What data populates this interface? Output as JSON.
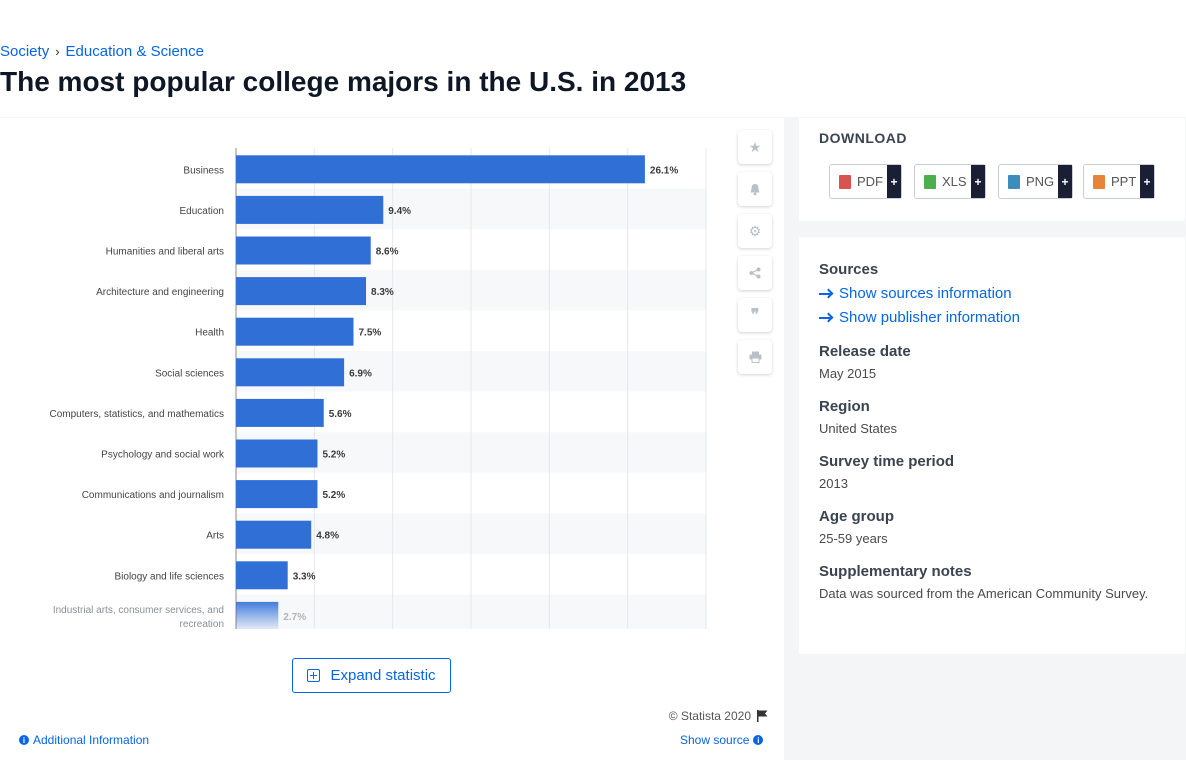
{
  "breadcrumb": {
    "level1": "Society",
    "separator": "›",
    "level2": "Education & Science"
  },
  "page_title": "The most popular college majors in the U.S. in 2013",
  "chart_tools": [
    "star-icon",
    "bell-icon",
    "gear-icon",
    "share-icon",
    "quote-icon",
    "print-icon"
  ],
  "expand_label": "Expand statistic",
  "copyright": "© Statista 2020",
  "additional_info": "Additional Information",
  "show_source": "Show source",
  "download": {
    "title": "DOWNLOAD",
    "formats": [
      {
        "label": "PDF",
        "color": "#d9534f"
      },
      {
        "label": "XLS",
        "color": "#4cae4c"
      },
      {
        "label": "PNG",
        "color": "#3c8dbc"
      },
      {
        "label": "PPT",
        "color": "#e8833a"
      }
    ],
    "plus": "+"
  },
  "meta": {
    "sources_heading": "Sources",
    "sources_link": "Show sources information",
    "publisher_link": "Show publisher information",
    "release_heading": "Release date",
    "release_value": "May 2015",
    "region_heading": "Region",
    "region_value": "United States",
    "survey_heading": "Survey time period",
    "survey_value": "2013",
    "age_heading": "Age group",
    "age_value": "25-59 years",
    "notes_heading": "Supplementary notes",
    "notes_value": "Data was sourced from the American Community Survey."
  },
  "chart_data": {
    "type": "bar",
    "orientation": "horizontal",
    "categories": [
      "Business",
      "Education",
      "Humanities and liberal arts",
      "Architecture and engineering",
      "Health",
      "Social sciences",
      "Computers, statistics, and mathematics",
      "Psychology and social work",
      "Communications and journalism",
      "Arts",
      "Biology and life sciences",
      "Industrial arts, consumer services, and recreation"
    ],
    "values": [
      26.1,
      9.4,
      8.6,
      8.3,
      7.5,
      6.9,
      5.6,
      5.2,
      5.2,
      4.8,
      3.3,
      2.7
    ],
    "value_labels": [
      "26.1%",
      "9.4%",
      "8.6%",
      "8.3%",
      "7.5%",
      "6.9%",
      "5.6%",
      "5.2%",
      "5.2%",
      "4.8%",
      "3.3%",
      "2.7%"
    ],
    "xlim": [
      0,
      30
    ],
    "bar_color": "#2f6fd6",
    "grid": true,
    "legend": "none"
  }
}
